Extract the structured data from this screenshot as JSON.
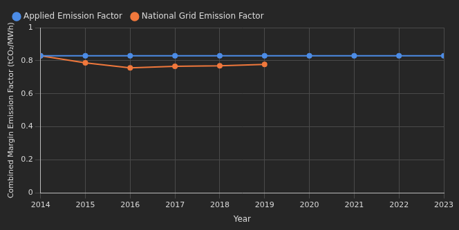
{
  "chart_data": {
    "type": "line",
    "x": [
      2014,
      2015,
      2016,
      2017,
      2018,
      2019,
      2020,
      2021,
      2022,
      2023
    ],
    "xlim": [
      2014,
      2023
    ],
    "xticks": [
      2014,
      2015,
      2016,
      2017,
      2018,
      2019,
      2020,
      2021,
      2022,
      2023
    ],
    "ylim": [
      0,
      1
    ],
    "yticks": [
      0,
      0.2,
      0.4,
      0.6,
      0.8,
      1
    ],
    "x_label": "Year",
    "y_label": "Combined Margin Emission Factor (tCO₂/MWh)",
    "grid": true,
    "legend": "top-left",
    "marker": "circle",
    "series": [
      {
        "name": "Applied Emission Factor",
        "color": "#4c8ce6",
        "values": [
          0.83,
          0.83,
          0.83,
          0.83,
          0.83,
          0.83,
          0.83,
          0.83,
          0.83,
          0.83
        ]
      },
      {
        "name": "National Grid Emission Factor",
        "color": "#f0783c",
        "values": [
          0.83,
          0.787,
          0.757,
          0.766,
          0.769,
          0.778,
          null,
          null,
          null,
          null
        ]
      }
    ]
  }
}
